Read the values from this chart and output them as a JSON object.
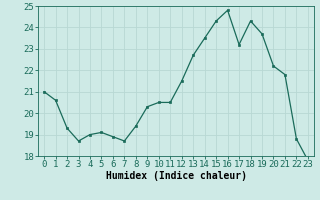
{
  "x": [
    0,
    1,
    2,
    3,
    4,
    5,
    6,
    7,
    8,
    9,
    10,
    11,
    12,
    13,
    14,
    15,
    16,
    17,
    18,
    19,
    20,
    21,
    22,
    23
  ],
  "y": [
    21.0,
    20.6,
    19.3,
    18.7,
    19.0,
    19.1,
    18.9,
    18.7,
    19.4,
    20.3,
    20.5,
    20.5,
    21.5,
    22.7,
    23.5,
    24.3,
    24.8,
    23.2,
    24.3,
    23.7,
    22.2,
    21.8,
    18.8,
    17.8
  ],
  "xlabel": "Humidex (Indice chaleur)",
  "ylim": [
    18,
    25
  ],
  "yticks": [
    18,
    19,
    20,
    21,
    22,
    23,
    24,
    25
  ],
  "xticks": [
    0,
    1,
    2,
    3,
    4,
    5,
    6,
    7,
    8,
    9,
    10,
    11,
    12,
    13,
    14,
    15,
    16,
    17,
    18,
    19,
    20,
    21,
    22,
    23
  ],
  "line_color": "#1a6b5a",
  "marker": "s",
  "marker_size": 2.0,
  "bg_color": "#ceeae6",
  "grid_color": "#b8d8d4",
  "label_fontsize": 7,
  "tick_fontsize": 6.5
}
